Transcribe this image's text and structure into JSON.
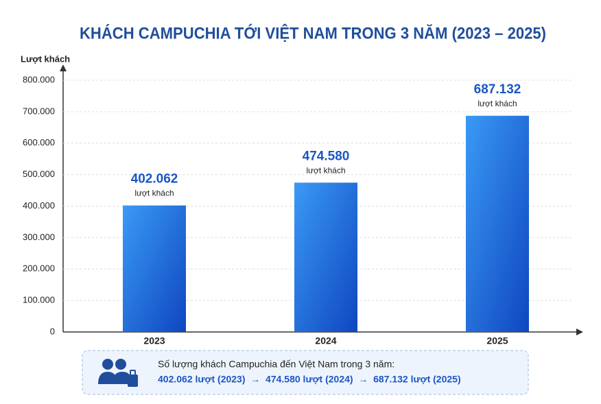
{
  "chart_data": {
    "type": "bar",
    "title": "KHÁCH CAMPUCHIA TỚI VIỆT NAM TRONG 3 NĂM (2023 – 2025)",
    "y_label": "Lượt khách",
    "categories": [
      "2023",
      "2024",
      "2025"
    ],
    "values": [
      402062,
      474580,
      687132
    ],
    "value_labels": [
      "402.062",
      "474.580",
      "687.132"
    ],
    "data_label_unit": "lượt khách",
    "color": "#1f6fe0",
    "ylim": [
      0,
      800000
    ],
    "yticks": [
      0,
      {
        "value": 100000,
        "label": "100.000"
      },
      {
        "value": 200000,
        "label": "200.000"
      },
      {
        "value": 300000,
        "label": "300.000"
      },
      {
        "value": 400000,
        "label": "400.000"
      },
      {
        "value": 500000,
        "label": "500.000"
      },
      {
        "value": 600000,
        "label": "600.000"
      },
      {
        "value": 700000,
        "label": "700.000"
      },
      {
        "value": 800000,
        "label": "800.000"
      }
    ],
    "grid": true
  },
  "summary": {
    "heading": "Số lượng khách Campuchia đến Việt Nam trong 3 năm:",
    "line": "402.062 lượt (2023)  →  474.580 lượt (2024)  →  687.132 lượt (2025)"
  }
}
